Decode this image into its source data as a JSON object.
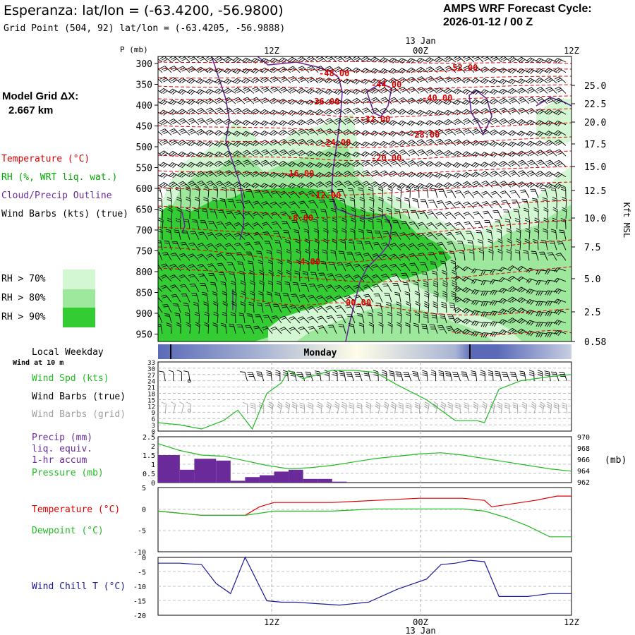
{
  "header": {
    "title": "Esperanza:  lat/lon = (-63.4200, -56.9800)",
    "grid_point": "Grid Point (504, 92) lat/lon = (-63.4205, -56.9888)",
    "cycle_line1": "AMPS WRF Forecast Cycle:",
    "cycle_line2": "2026-01-12 / 00  Z"
  },
  "model_grid": {
    "label": "Model Grid ΔX:",
    "value": "2.667 km"
  },
  "colors": {
    "temperature": "#dd0000",
    "rh_text": "#00aa00",
    "cloud": "#6a2a9a",
    "wind_spd": "#22bb22",
    "grid_barbs": "#a0a0a0",
    "precip": "#6a2a9a",
    "pressure": "#22bb22",
    "dewpoint": "#22bb22",
    "windchill": "#1a1a99",
    "rh70": "#d2f7d2",
    "rh80": "#9ee89e",
    "rh90": "#33cc33"
  },
  "legend": {
    "temperature": "Temperature (°C)",
    "rh": "RH (%, WRT liq. wat.)",
    "cloud": "Cloud/Precip Outline",
    "wind_barbs": "Wind Barbs (kts) (true)",
    "rh70": "RH > 70%",
    "rh80": "RH > 80%",
    "rh90": "RH > 90%"
  },
  "time_axis": {
    "top_labels": [
      "12Z",
      "00Z",
      "12Z"
    ],
    "bottom_labels": [
      "12Z",
      "00Z",
      "12Z"
    ],
    "day_label": "13 Jan",
    "weekday": "Monday",
    "local_weekday": "Local Weekday"
  },
  "cross_section": {
    "ylabel": "P (mb)",
    "pressure_levels": [
      "300",
      "350",
      "400",
      "450",
      "500",
      "550",
      "600",
      "650",
      "700",
      "750",
      "800",
      "850",
      "900",
      "950"
    ],
    "height_ticks": [
      "25.0",
      "22.5",
      "20.0",
      "17.5",
      "15.0",
      "12.5",
      "10.0",
      "7.5",
      "5.0",
      "2.5",
      "0.58"
    ],
    "right_label": "Kft MSL",
    "temp_labels": [
      "-48.00",
      "-52.00",
      "-44.00",
      "-40.00",
      "-36.00",
      "-32.00",
      "-28.00",
      "-24.00",
      "-20.00",
      "-16.00",
      "-12.00",
      "-8.00",
      "-4.00",
      "00.00"
    ]
  },
  "wind_panel": {
    "title": "Wind at 10 m",
    "label_spd": "Wind Spd (kts)",
    "label_barbs_true": "Wind Barbs (true)",
    "label_barbs_grid": "Wind Barbs (grid)",
    "ticks": [
      "33",
      "30",
      "27",
      "24",
      "21",
      "18",
      "15",
      "12",
      "9",
      "6",
      "3",
      "0"
    ]
  },
  "precip_panel": {
    "label1": "Precip (mm)",
    "label2": "liq. equiv.",
    "label3": "1-hr accum",
    "label4": "Pressure (mb)",
    "left_ticks": [
      "2.5",
      "2",
      "1.5",
      "1",
      "0.5",
      "0"
    ],
    "right_ticks": [
      "970",
      "968",
      "966",
      "964",
      "962"
    ],
    "right_unit": "(mb)"
  },
  "temp_panel": {
    "label_t": "Temperature (°C)",
    "label_td": "Dewpoint (°C)",
    "ticks": [
      "5",
      "0",
      "-5",
      "-10"
    ]
  },
  "windchill_panel": {
    "label": "Wind Chill T (°C)",
    "ticks": [
      "0",
      "-5",
      "-10",
      "-15",
      "-20"
    ]
  },
  "chart_data": [
    {
      "type": "line",
      "name": "wind_speed_10m",
      "x_hours": [
        0,
        3,
        6,
        9,
        11,
        13,
        15,
        17,
        18,
        20,
        24,
        27,
        30,
        33,
        37,
        41,
        44,
        45,
        47,
        50,
        54,
        57
      ],
      "values": [
        4,
        3,
        1,
        5,
        10,
        1,
        18,
        23,
        29,
        25,
        29,
        29,
        28,
        22,
        15,
        5,
        5,
        4,
        20,
        24,
        26,
        27
      ],
      "ylim": [
        0,
        33
      ]
    },
    {
      "type": "bar",
      "name": "precip_1hr",
      "x_hours": [
        0,
        3,
        5,
        8,
        10,
        12,
        14,
        16,
        18,
        20,
        22,
        24,
        26,
        28,
        30,
        32,
        34,
        36,
        38,
        40,
        42,
        44,
        46,
        48,
        50,
        52,
        54,
        56
      ],
      "values": [
        1.5,
        0.7,
        1.3,
        1.2,
        0.1,
        0.3,
        0.4,
        0.6,
        0.7,
        0.2,
        0.2,
        0.05,
        0,
        0,
        0,
        0,
        0,
        0,
        0,
        0,
        0,
        0,
        0,
        0,
        0,
        0,
        0,
        0
      ],
      "ylim": [
        0,
        2.5
      ]
    },
    {
      "type": "line",
      "name": "pressure",
      "x_hours": [
        0,
        3,
        6,
        9,
        12,
        15,
        18,
        21,
        24,
        27,
        30,
        33,
        36,
        39,
        42,
        45,
        48,
        51,
        54,
        57
      ],
      "values": [
        968.8,
        967.6,
        966.8,
        966.6,
        965.8,
        965.0,
        964.4,
        964.6,
        965.0,
        965.6,
        966.2,
        966.6,
        967.0,
        967.2,
        966.8,
        966.2,
        965.6,
        965.0,
        964.4,
        964.0
      ],
      "ylim": [
        962,
        970
      ]
    },
    {
      "type": "line",
      "name": "temperature_2m",
      "x_hours": [
        0,
        6,
        12,
        14,
        16,
        18,
        24,
        30,
        36,
        42,
        45,
        46,
        48,
        52,
        55,
        57
      ],
      "values": [
        -0.5,
        -1.5,
        -1.5,
        0.5,
        1.5,
        1.5,
        1.5,
        2.0,
        2.5,
        2.5,
        2.0,
        0.5,
        1.0,
        2.0,
        3.0,
        3.0
      ],
      "ylim": [
        -10,
        5
      ]
    },
    {
      "type": "line",
      "name": "dewpoint_2m",
      "x_hours": [
        0,
        6,
        12,
        16,
        24,
        30,
        36,
        42,
        45,
        48,
        51,
        54,
        57
      ],
      "values": [
        -0.5,
        -1.5,
        -1.5,
        -0.5,
        -0.5,
        0.0,
        0.0,
        0.0,
        -0.5,
        -2.0,
        -4.0,
        -6.5,
        -6.5
      ],
      "ylim": [
        -10,
        5
      ]
    },
    {
      "type": "line",
      "name": "wind_chill",
      "x_hours": [
        0,
        3,
        6,
        8,
        10,
        12,
        15,
        17,
        19,
        22,
        25,
        29,
        33,
        37,
        39,
        41,
        43,
        45,
        47,
        51,
        54,
        57
      ],
      "values": [
        -2,
        -2,
        -2.5,
        -9,
        -12.5,
        0,
        -15,
        -15.5,
        -15.5,
        -16,
        -16.5,
        -15.5,
        -11,
        -7.5,
        -2.5,
        -2,
        -1,
        -1.5,
        -13.5,
        -13.5,
        -12.5,
        -12.5
      ],
      "ylim": [
        -20,
        0
      ]
    }
  ]
}
